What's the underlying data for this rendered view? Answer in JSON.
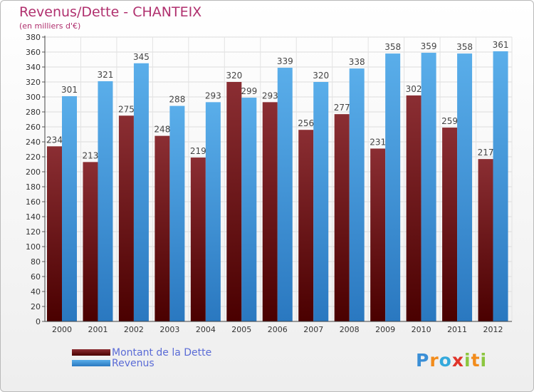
{
  "title": "Revenus/Dette - CHANTEIX",
  "subtitle": "(en milliers d'€)",
  "logo_text": "Proxiti",
  "colors": {
    "debt_top": "#8b2e33",
    "debt_bottom": "#4a0000",
    "revenue_top": "#5aaeea",
    "revenue_bottom": "#2a78c0",
    "title": "#b0306e",
    "legend_text": "#5a6bd6"
  },
  "chart_data": {
    "type": "bar",
    "title": "Revenus/Dette - CHANTEIX",
    "ylabel": "(en milliers d'€)",
    "xlabel": "",
    "ylim": [
      0,
      380
    ],
    "ytick_step": 20,
    "grid": true,
    "legend_position": "bottom-left",
    "categories": [
      "2000",
      "2001",
      "2002",
      "2003",
      "2004",
      "2005",
      "2006",
      "2007",
      "2008",
      "2009",
      "2010",
      "2011",
      "2012"
    ],
    "series": [
      {
        "name": "Montant de la Dette",
        "values": [
          234,
          213,
          275,
          248,
          219,
          320,
          293,
          256,
          277,
          231,
          302,
          259,
          217
        ]
      },
      {
        "name": "Revenus",
        "values": [
          301,
          321,
          345,
          288,
          293,
          299,
          339,
          320,
          338,
          358,
          359,
          358,
          361
        ]
      }
    ]
  }
}
